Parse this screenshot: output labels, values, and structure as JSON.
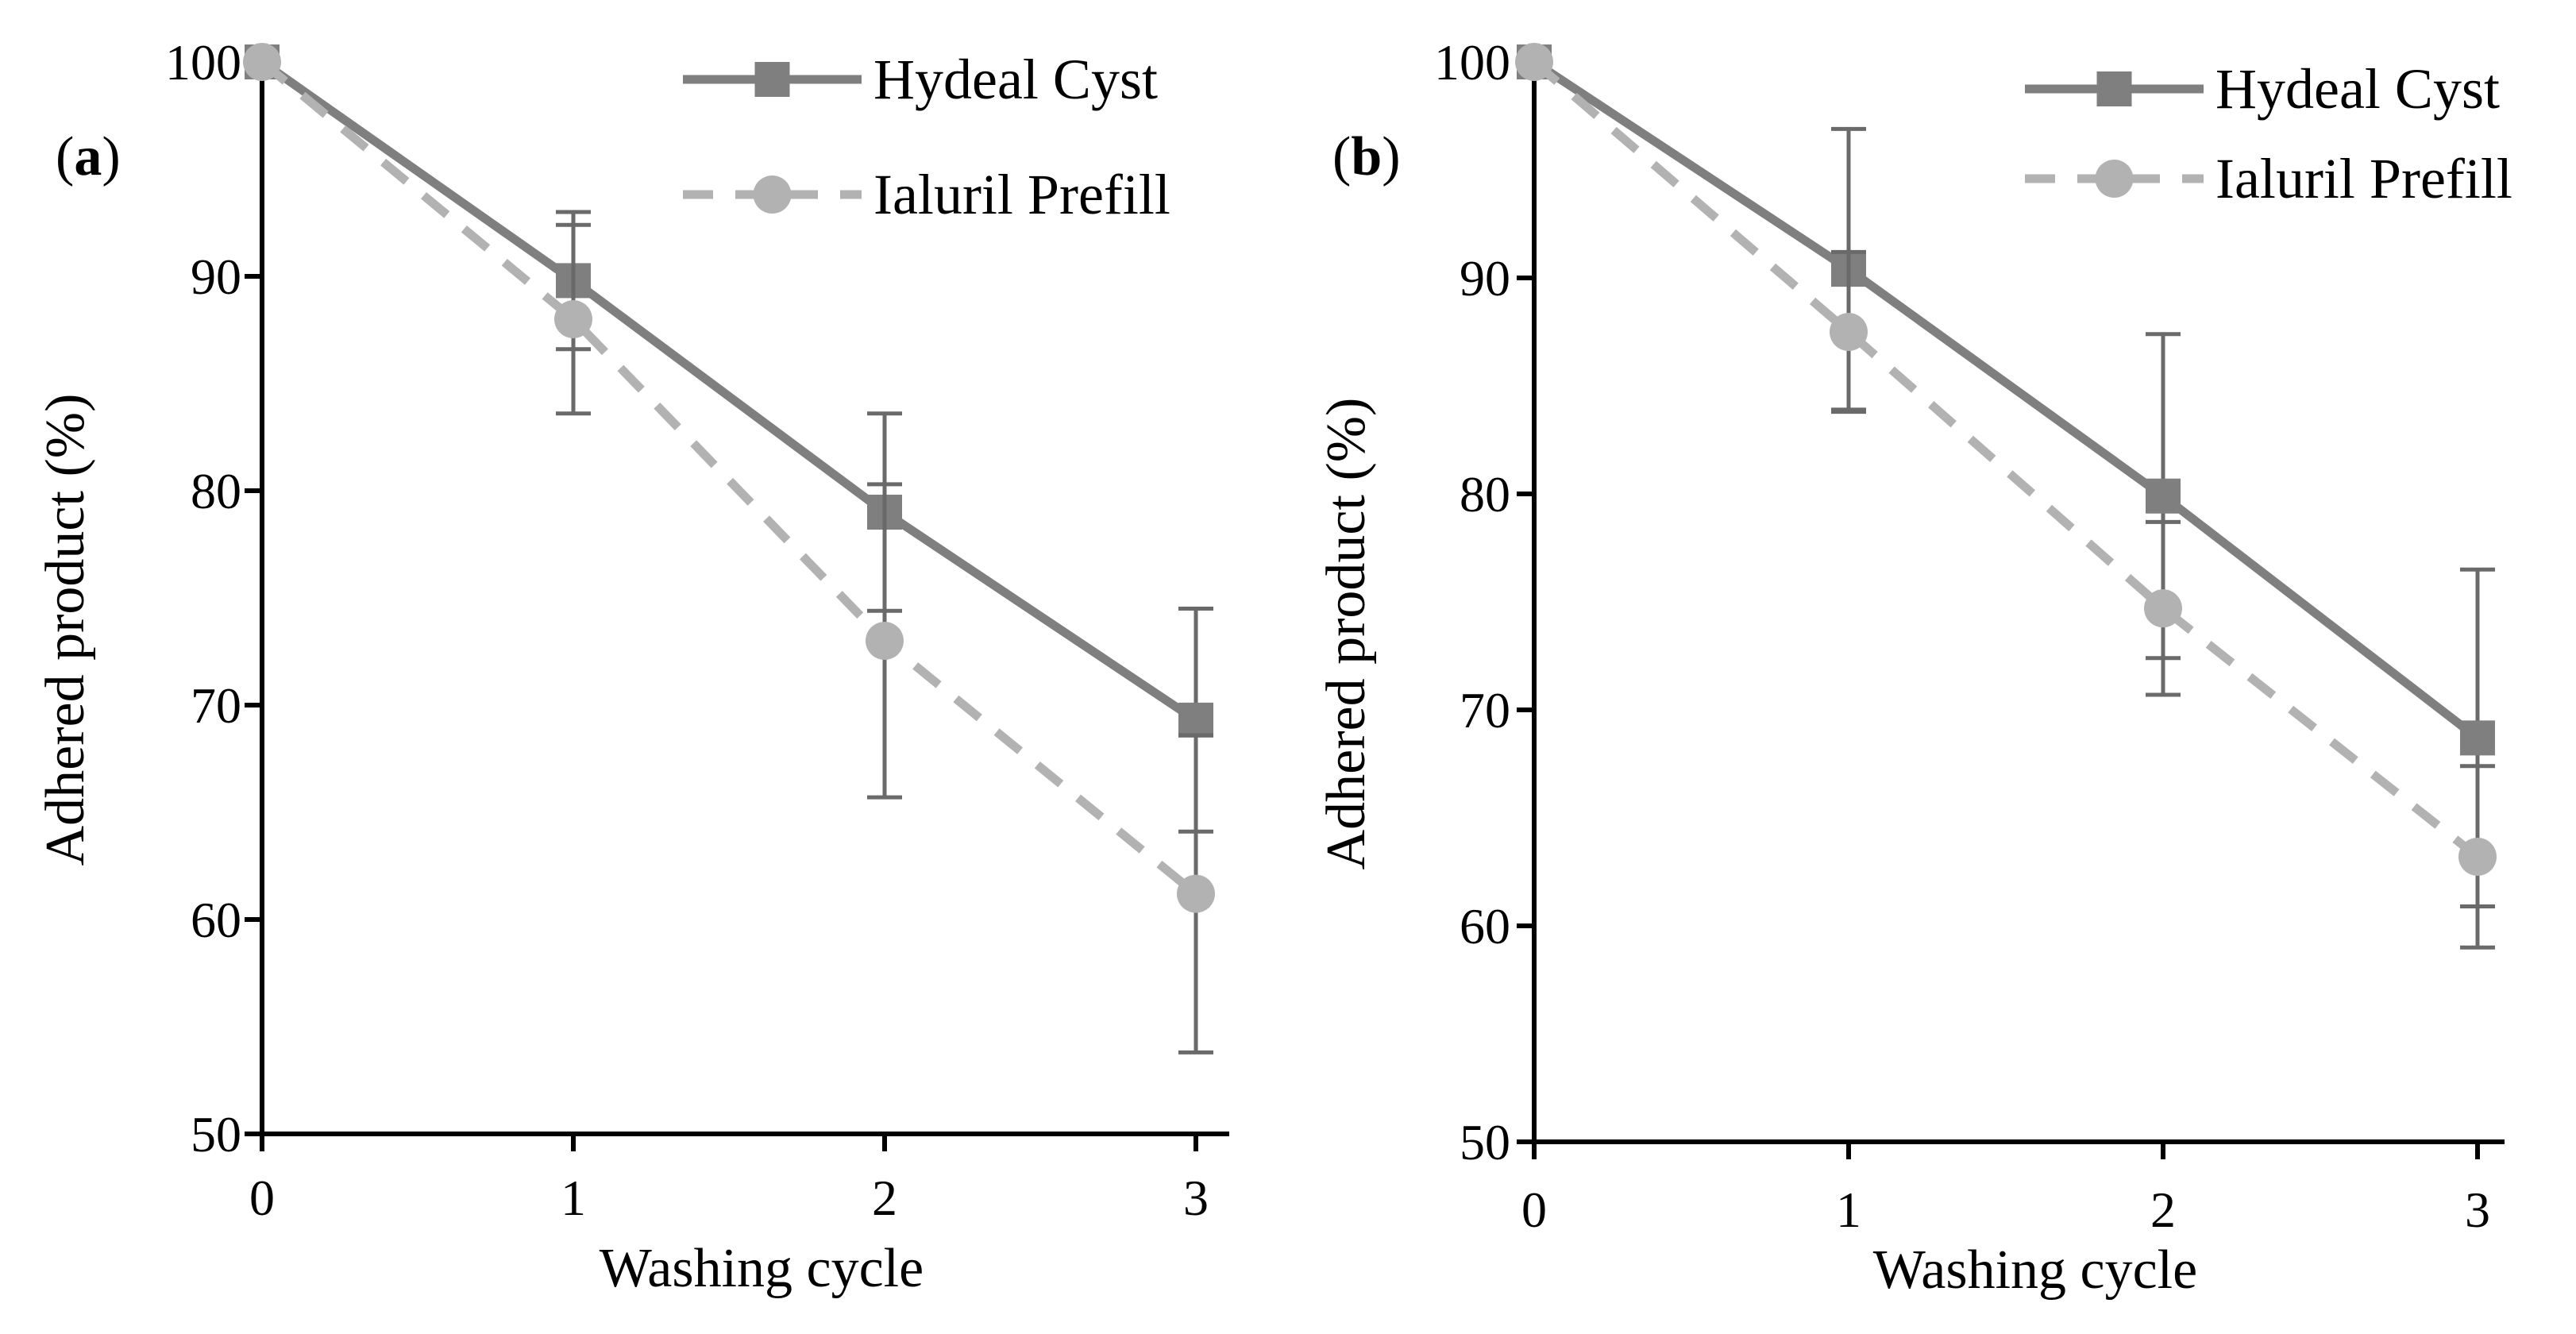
{
  "chart_data": [
    {
      "type": "line",
      "panel_label": "a",
      "title": "",
      "xlabel": "Washing cycle",
      "ylabel": "Adhered product (%)",
      "categories": [
        "0",
        "1",
        "2",
        "3"
      ],
      "x": [
        0,
        1,
        2,
        3
      ],
      "xlim": [
        0,
        3
      ],
      "ylim": [
        50,
        100
      ],
      "yticks": [
        50,
        60,
        70,
        80,
        90,
        100
      ],
      "grid": false,
      "legend_position": "top-right",
      "series": [
        {
          "name": "Hydeal Cyst",
          "values": [
            100,
            89.8,
            79,
            69.3
          ],
          "error": [
            0,
            3.2,
            4.6,
            5.2
          ],
          "line_style": "solid",
          "marker": "square",
          "color": "#7f7f7f"
        },
        {
          "name": "Ialuril Prefill",
          "values": [
            100,
            88,
            73,
            61.2
          ],
          "error": [
            0,
            4.4,
            7.3,
            7.4
          ],
          "line_style": "dashed",
          "marker": "circle",
          "color": "#b2b2b2"
        }
      ]
    },
    {
      "type": "line",
      "panel_label": "b",
      "title": "",
      "xlabel": "Washing cycle",
      "ylabel": "Adhered product (%)",
      "categories": [
        "0",
        "1",
        "2",
        "3"
      ],
      "x": [
        0,
        1,
        2,
        3
      ],
      "xlim": [
        0,
        3
      ],
      "ylim": [
        50,
        100
      ],
      "yticks": [
        50,
        60,
        70,
        80,
        90,
        100
      ],
      "grid": false,
      "legend_position": "top-right",
      "series": [
        {
          "name": "Hydeal Cyst",
          "values": [
            100,
            90.4,
            79.9,
            68.7
          ],
          "error": [
            0,
            6.5,
            7.5,
            7.8
          ],
          "line_style": "solid",
          "marker": "square",
          "color": "#7f7f7f"
        },
        {
          "name": "Ialuril Prefill",
          "values": [
            100,
            87.5,
            74.7,
            63.2
          ],
          "error": [
            0,
            3.7,
            4.0,
            4.2
          ],
          "line_style": "dashed",
          "marker": "circle",
          "color": "#b2b2b2"
        }
      ]
    }
  ]
}
